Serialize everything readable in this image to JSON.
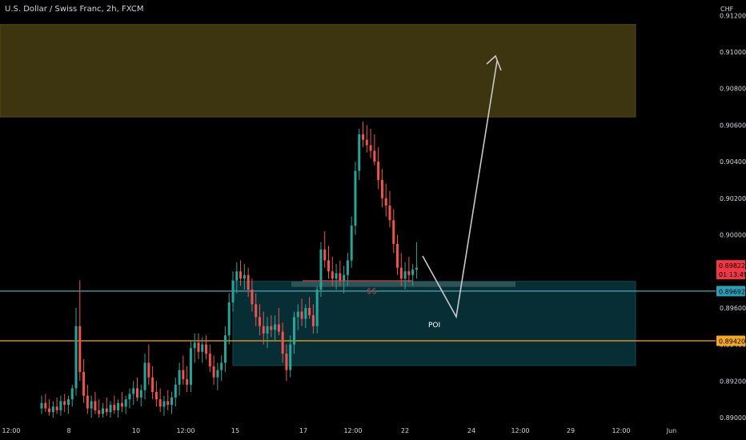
{
  "chart_data": {
    "type": "candlestick",
    "title": "U.S. Dollar / Swiss Franc, 2h, FXCM",
    "currency": "CHF",
    "ylim": [
      0.89,
      0.9125
    ],
    "y_ticks": [
      "0.89000",
      "0.89200",
      "0.89400",
      "0.89600",
      "0.89800",
      "0.90000",
      "0.90200",
      "0.90400",
      "0.90600",
      "0.90800",
      "0.91000",
      "0.91200"
    ],
    "x_ticks": [
      "12:00",
      "8",
      "10",
      "12:00",
      "15",
      "17",
      "12:00",
      "22",
      "24",
      "12:00",
      "29",
      "12:00",
      "Jun"
    ],
    "up_color": "#26a69a",
    "down_color": "#ef5350",
    "price_labels": [
      {
        "price": 0.89822,
        "text": "0.89822",
        "sub": "01:13:49",
        "color": "#f23645"
      },
      {
        "price": 0.89692,
        "text": "0.89692",
        "color": "#2a9fb5"
      },
      {
        "price": 0.8942,
        "text": "0.89420",
        "color": "#f5a623"
      }
    ],
    "horizontal_lines": [
      {
        "price": 0.89692,
        "color": "#4ba7b8"
      },
      {
        "price": 0.8942,
        "color": "#f5a623"
      }
    ],
    "zones": [
      {
        "name": "supply-zone",
        "top": 0.9115,
        "bottom": 0.90645,
        "color": "#3d3410"
      },
      {
        "name": "poi-zone",
        "top": 0.89745,
        "bottom": 0.89285,
        "color": "#062e34"
      },
      {
        "name": "liquidity-box",
        "top": 0.89745,
        "bottom": 0.89715,
        "color": "#2c5358"
      }
    ],
    "annotations": [
      {
        "name": "poi-label",
        "text": "POI",
        "color": "#ffffff"
      },
      {
        "name": "liquidity-label",
        "text": "$$",
        "color": "#b8484a"
      }
    ],
    "candles": [
      [
        0.8905,
        0.8912,
        0.8902,
        0.8908
      ],
      [
        0.8908,
        0.8913,
        0.8903,
        0.8905
      ],
      [
        0.8905,
        0.891,
        0.8901,
        0.8903
      ],
      [
        0.8903,
        0.8909,
        0.89,
        0.8906
      ],
      [
        0.8906,
        0.8911,
        0.8902,
        0.8904
      ],
      [
        0.8904,
        0.8912,
        0.8901,
        0.8909
      ],
      [
        0.8909,
        0.8913,
        0.8903,
        0.8907
      ],
      [
        0.8907,
        0.8912,
        0.8902,
        0.891
      ],
      [
        0.891,
        0.8918,
        0.8906,
        0.8916
      ],
      [
        0.8916,
        0.896,
        0.8912,
        0.895
      ],
      [
        0.895,
        0.8975,
        0.892,
        0.8925
      ],
      [
        0.8925,
        0.8932,
        0.8908,
        0.8912
      ],
      [
        0.8912,
        0.8918,
        0.8902,
        0.8905
      ],
      [
        0.8905,
        0.8912,
        0.89,
        0.8909
      ],
      [
        0.8909,
        0.8914,
        0.8902,
        0.8904
      ],
      [
        0.8904,
        0.891,
        0.8899,
        0.8902
      ],
      [
        0.8902,
        0.8908,
        0.8898,
        0.8905
      ],
      [
        0.8905,
        0.8911,
        0.8901,
        0.8903
      ],
      [
        0.8903,
        0.8909,
        0.89,
        0.8907
      ],
      [
        0.8907,
        0.8912,
        0.8902,
        0.8904
      ],
      [
        0.8904,
        0.891,
        0.89,
        0.8908
      ],
      [
        0.8908,
        0.8914,
        0.8903,
        0.8906
      ],
      [
        0.8906,
        0.8912,
        0.8902,
        0.891
      ],
      [
        0.891,
        0.8916,
        0.8905,
        0.8913
      ],
      [
        0.8913,
        0.892,
        0.8907,
        0.8916
      ],
      [
        0.8916,
        0.8922,
        0.8909,
        0.8911
      ],
      [
        0.8911,
        0.8918,
        0.8906,
        0.8915
      ],
      [
        0.8915,
        0.8935,
        0.891,
        0.893
      ],
      [
        0.893,
        0.894,
        0.8918,
        0.8922
      ],
      [
        0.8922,
        0.8928,
        0.891,
        0.8914
      ],
      [
        0.8914,
        0.892,
        0.8906,
        0.891
      ],
      [
        0.891,
        0.8916,
        0.8903,
        0.8906
      ],
      [
        0.8906,
        0.8912,
        0.8901,
        0.8909
      ],
      [
        0.8909,
        0.8915,
        0.8904,
        0.8907
      ],
      [
        0.8907,
        0.8914,
        0.8902,
        0.8911
      ],
      [
        0.8911,
        0.8922,
        0.8906,
        0.8918
      ],
      [
        0.8918,
        0.893,
        0.8912,
        0.8926
      ],
      [
        0.8926,
        0.8934,
        0.8918,
        0.8921
      ],
      [
        0.8921,
        0.8928,
        0.8914,
        0.8918
      ],
      [
        0.8918,
        0.8942,
        0.8914,
        0.8938
      ],
      [
        0.8938,
        0.8946,
        0.893,
        0.8941
      ],
      [
        0.8941,
        0.8946,
        0.8932,
        0.8936
      ],
      [
        0.8936,
        0.8944,
        0.893,
        0.894
      ],
      [
        0.894,
        0.8945,
        0.8932,
        0.8935
      ],
      [
        0.8935,
        0.894,
        0.8925,
        0.8928
      ],
      [
        0.8928,
        0.8934,
        0.8918,
        0.8922
      ],
      [
        0.8922,
        0.893,
        0.8915,
        0.8926
      ],
      [
        0.8926,
        0.8934,
        0.892,
        0.893
      ],
      [
        0.893,
        0.895,
        0.8925,
        0.8945
      ],
      [
        0.8945,
        0.8968,
        0.894,
        0.8963
      ],
      [
        0.8963,
        0.898,
        0.8958,
        0.8975
      ],
      [
        0.8975,
        0.8985,
        0.8968,
        0.898
      ],
      [
        0.898,
        0.8986,
        0.8972,
        0.8976
      ],
      [
        0.8976,
        0.8984,
        0.897,
        0.8978
      ],
      [
        0.8978,
        0.8982,
        0.8966,
        0.897
      ],
      [
        0.897,
        0.8976,
        0.8958,
        0.8962
      ],
      [
        0.8962,
        0.8968,
        0.895,
        0.8955
      ],
      [
        0.8955,
        0.8962,
        0.8945,
        0.895
      ],
      [
        0.895,
        0.8958,
        0.894,
        0.8946
      ],
      [
        0.8946,
        0.8955,
        0.8938,
        0.895
      ],
      [
        0.895,
        0.8956,
        0.8944,
        0.8948
      ],
      [
        0.8948,
        0.8956,
        0.8942,
        0.8951
      ],
      [
        0.8951,
        0.896,
        0.8945,
        0.8947
      ],
      [
        0.8947,
        0.8952,
        0.893,
        0.8935
      ],
      [
        0.8935,
        0.894,
        0.892,
        0.8926
      ],
      [
        0.8926,
        0.8945,
        0.8922,
        0.894
      ],
      [
        0.894,
        0.8958,
        0.8935,
        0.8955
      ],
      [
        0.8955,
        0.8962,
        0.8948,
        0.8958
      ],
      [
        0.8958,
        0.8965,
        0.895,
        0.8954
      ],
      [
        0.8954,
        0.8962,
        0.8949,
        0.896
      ],
      [
        0.896,
        0.8966,
        0.8954,
        0.8956
      ],
      [
        0.8956,
        0.8962,
        0.8946,
        0.895
      ],
      [
        0.895,
        0.8972,
        0.8946,
        0.897
      ],
      [
        0.897,
        0.8996,
        0.8966,
        0.8992
      ],
      [
        0.8992,
        0.9002,
        0.8982,
        0.8986
      ],
      [
        0.8986,
        0.8994,
        0.8976,
        0.898
      ],
      [
        0.898,
        0.8988,
        0.8972,
        0.8976
      ],
      [
        0.8976,
        0.8984,
        0.897,
        0.8979
      ],
      [
        0.8979,
        0.8986,
        0.8972,
        0.8975
      ],
      [
        0.8975,
        0.8983,
        0.8968,
        0.8978
      ],
      [
        0.8978,
        0.899,
        0.8972,
        0.8986
      ],
      [
        0.8986,
        0.901,
        0.8982,
        0.9005
      ],
      [
        0.9005,
        0.904,
        0.9,
        0.9035
      ],
      [
        0.9035,
        0.9058,
        0.903,
        0.9055
      ],
      [
        0.9055,
        0.9062,
        0.9048,
        0.9052
      ],
      [
        0.9052,
        0.906,
        0.9045,
        0.9049
      ],
      [
        0.9049,
        0.9058,
        0.9042,
        0.9046
      ],
      [
        0.9046,
        0.9055,
        0.9038,
        0.904
      ],
      [
        0.904,
        0.9048,
        0.9025,
        0.903
      ],
      [
        0.903,
        0.9036,
        0.9015,
        0.902
      ],
      [
        0.902,
        0.9028,
        0.901,
        0.9016
      ],
      [
        0.9016,
        0.9024,
        0.9004,
        0.9008
      ],
      [
        0.9008,
        0.9014,
        0.899,
        0.8995
      ],
      [
        0.8995,
        0.9,
        0.8978,
        0.8982
      ],
      [
        0.8982,
        0.899,
        0.8972,
        0.8976
      ],
      [
        0.8976,
        0.8985,
        0.897,
        0.898
      ],
      [
        0.898,
        0.8988,
        0.8974,
        0.8978
      ],
      [
        0.8978,
        0.8984,
        0.8972,
        0.8981
      ],
      [
        0.8981,
        0.8996,
        0.8976,
        0.8982
      ]
    ]
  }
}
